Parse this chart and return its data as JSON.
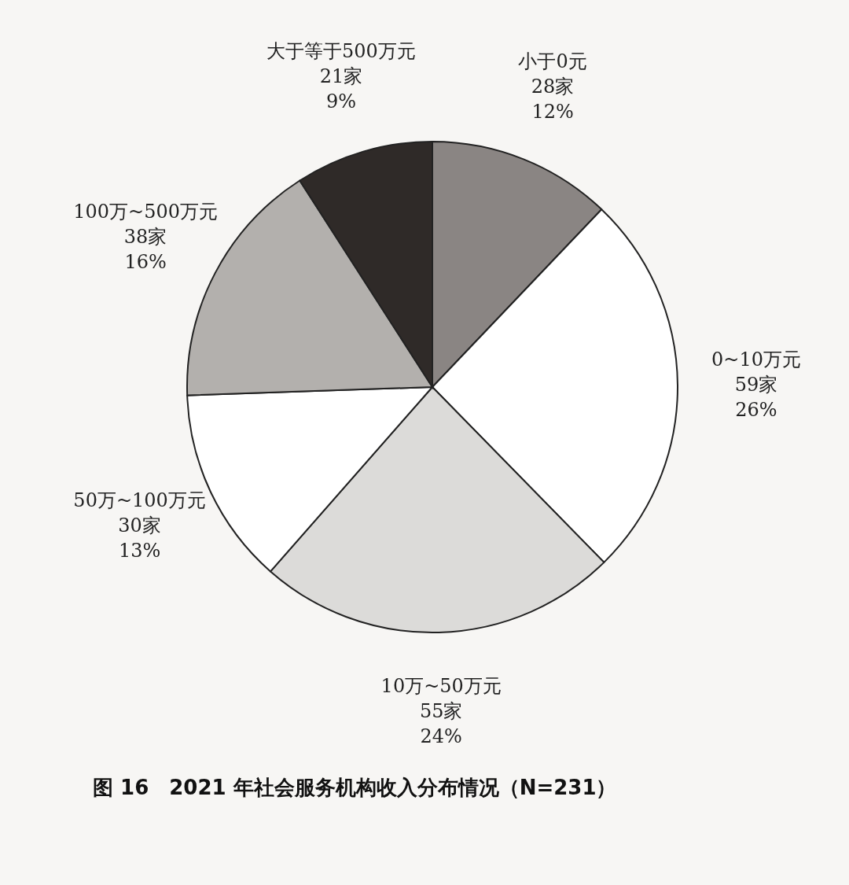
{
  "chart_data": {
    "type": "pie",
    "title": "图 16　2021 年社会服务机构收入分布情况（N=231）",
    "categories": [
      "小于0元",
      "0~10万元",
      "10万~50万元",
      "50万~100万元",
      "100万~500万元",
      "大于等于500万元"
    ],
    "values": [
      28,
      59,
      55,
      30,
      38,
      21
    ],
    "value_labels": [
      "28家\n12%",
      "59家\n26%",
      "55家\n24%",
      "30家\n13%",
      "38家\n16%",
      "21家\n9%"
    ],
    "colors": [
      "#8a8583",
      "#ffffff",
      "#dcdbd9",
      "#ffffff",
      "#b3b0ad",
      "#2f2a28"
    ]
  }
}
